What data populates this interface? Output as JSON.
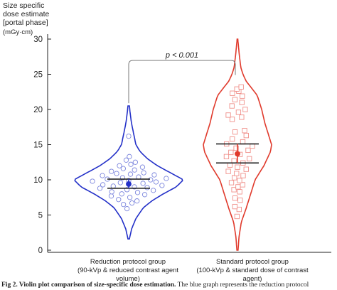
{
  "y_title_lines": [
    "Size specific",
    "dose estimate",
    "[portal phase]"
  ],
  "y_unit": "(mGy·cm)",
  "caption": {
    "label": "Fig 2.  Violin plot comparison of size-specific dose estimation.",
    "text": " The blue graph represents the reduction protocol"
  },
  "colors": {
    "reduction": "#2330c8",
    "standard": "#e03a2c",
    "axis": "#222222",
    "bracket": "#777777"
  },
  "chart_data": {
    "type": "violin",
    "ylim": [
      0,
      30
    ],
    "yticks": [
      0,
      5,
      10,
      15,
      20,
      25,
      30
    ],
    "ylabel": "Size specific dose estimate [portal phase]",
    "annotation": "p < 0.001",
    "groups": [
      {
        "name": "reduction",
        "label_line1": "Reduction protocol group",
        "label_line2": "(90-kVp & reduced contrast agent volume)",
        "range": [
          1.6,
          20.5
        ],
        "mean": 9.4,
        "ci": [
          8.8,
          10.1
        ],
        "density": [
          [
            1.6,
            0.5
          ],
          [
            3,
            2
          ],
          [
            4.5,
            5
          ],
          [
            6,
            10
          ],
          [
            7,
            16
          ],
          [
            8,
            24
          ],
          [
            9,
            33
          ],
          [
            10,
            38
          ],
          [
            11,
            29
          ],
          [
            12,
            20
          ],
          [
            13,
            13
          ],
          [
            14,
            8
          ],
          [
            15,
            5
          ],
          [
            16,
            4
          ],
          [
            17,
            3
          ],
          [
            18,
            2
          ],
          [
            19.5,
            1
          ],
          [
            20.5,
            0.5
          ]
        ],
        "points": [
          [
            5.9,
            -0.15
          ],
          [
            6.5,
            -0.35
          ],
          [
            6.7,
            0.2
          ],
          [
            7.0,
            0.45
          ],
          [
            7.2,
            -0.5
          ],
          [
            7.5,
            0.05
          ],
          [
            7.7,
            -0.7
          ],
          [
            7.9,
            0.6
          ],
          [
            8.0,
            -0.25
          ],
          [
            8.2,
            0.3
          ],
          [
            8.3,
            -0.55
          ],
          [
            8.5,
            0.75
          ],
          [
            8.6,
            -0.05
          ],
          [
            8.8,
            -0.8
          ],
          [
            8.9,
            0.5
          ],
          [
            9.0,
            0.15
          ],
          [
            9.1,
            -0.4
          ],
          [
            9.2,
            0.85
          ],
          [
            9.3,
            -0.65
          ],
          [
            9.5,
            0.35
          ],
          [
            9.6,
            -0.2
          ],
          [
            9.7,
            0.65
          ],
          [
            9.8,
            -0.85
          ],
          [
            9.9,
            0.0
          ],
          [
            10.0,
            0.5
          ],
          [
            10.1,
            -0.5
          ],
          [
            10.2,
            0.9
          ],
          [
            10.3,
            -0.15
          ],
          [
            10.4,
            0.25
          ],
          [
            10.6,
            -0.7
          ],
          [
            10.7,
            0.7
          ],
          [
            10.8,
            0.05
          ],
          [
            10.9,
            -0.35
          ],
          [
            11.0,
            0.45
          ],
          [
            11.2,
            -0.55
          ],
          [
            11.4,
            0.2
          ],
          [
            11.6,
            -0.2
          ],
          [
            11.8,
            0.55
          ],
          [
            12.0,
            -0.4
          ],
          [
            12.2,
            0.1
          ],
          [
            12.5,
            0.35
          ],
          [
            12.8,
            -0.15
          ],
          [
            13.3,
            0.05
          ],
          [
            16.2,
            0.0
          ]
        ]
      },
      {
        "name": "standard",
        "label_line1": "Standard protocol group",
        "label_line2": "(100-kVp & standard dose of contrast agent)",
        "range": [
          0,
          30
        ],
        "mean": 13.7,
        "ci": [
          12.4,
          15.1
        ],
        "density": [
          [
            0,
            0.5
          ],
          [
            2,
            1.5
          ],
          [
            4,
            3.5
          ],
          [
            6,
            8
          ],
          [
            8,
            12
          ],
          [
            10,
            16
          ],
          [
            12,
            24
          ],
          [
            14,
            30
          ],
          [
            15,
            31
          ],
          [
            16,
            29
          ],
          [
            18,
            25
          ],
          [
            20,
            22
          ],
          [
            21,
            20
          ],
          [
            22,
            18
          ],
          [
            23,
            13
          ],
          [
            24,
            8
          ],
          [
            25,
            5
          ],
          [
            26,
            3
          ],
          [
            28,
            1.5
          ],
          [
            30,
            0.3
          ]
        ],
        "points": [
          [
            4.8,
            -0.1
          ],
          [
            5.8,
            0.25
          ],
          [
            6.2,
            -0.35
          ],
          [
            7.1,
            0.3
          ],
          [
            7.4,
            -0.25
          ],
          [
            8.3,
            0.2
          ],
          [
            8.6,
            -0.3
          ],
          [
            9.0,
            0.05
          ],
          [
            9.3,
            0.4
          ],
          [
            9.6,
            -0.45
          ],
          [
            9.9,
            0.15
          ],
          [
            10.3,
            -0.2
          ],
          [
            10.6,
            0.35
          ],
          [
            10.9,
            -0.05
          ],
          [
            11.2,
            -0.5
          ],
          [
            11.5,
            0.45
          ],
          [
            11.8,
            0.0
          ],
          [
            12.1,
            -0.35
          ],
          [
            12.4,
            0.25
          ],
          [
            12.7,
            -0.15
          ],
          [
            13.0,
            0.5
          ],
          [
            13.3,
            -0.45
          ],
          [
            13.6,
            0.1
          ],
          [
            13.9,
            -0.25
          ],
          [
            14.2,
            0.4
          ],
          [
            14.5,
            -0.05
          ],
          [
            14.8,
            0.55
          ],
          [
            15.1,
            -0.4
          ],
          [
            15.4,
            0.2
          ],
          [
            15.8,
            -0.2
          ],
          [
            16.3,
            0.35
          ],
          [
            16.8,
            -0.1
          ],
          [
            17.0,
            0.3
          ],
          [
            18.6,
            -0.25
          ],
          [
            18.9,
            0.2
          ],
          [
            19.2,
            -0.45
          ],
          [
            19.6,
            0.05
          ],
          [
            20.0,
            0.4
          ],
          [
            20.5,
            -0.3
          ],
          [
            21.0,
            0.25
          ],
          [
            21.4,
            -0.15
          ],
          [
            21.9,
            0.3
          ],
          [
            22.3,
            -0.35
          ],
          [
            22.6,
            0.1
          ],
          [
            22.9,
            -0.05
          ],
          [
            23.2,
            0.35
          ]
        ]
      }
    ]
  }
}
